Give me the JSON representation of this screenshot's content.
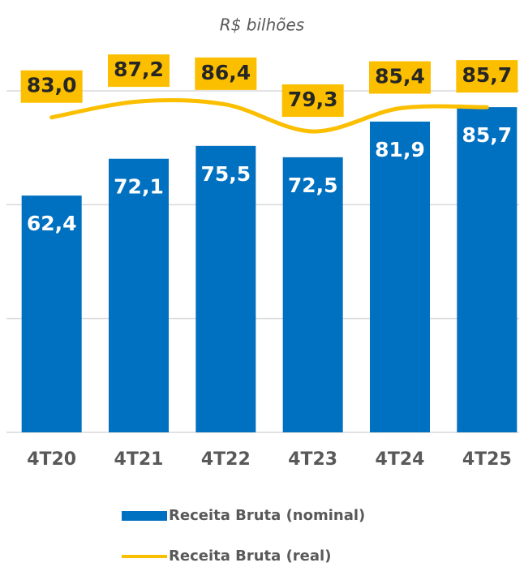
{
  "chart_data": {
    "type": "bar",
    "subtitle": "R$ bilhões",
    "categories": [
      "4T20",
      "4T21",
      "4T22",
      "4T23",
      "4T24",
      "4T25"
    ],
    "series": [
      {
        "name": "Receita Bruta (nominal)",
        "type": "bar",
        "color": "#0070c0",
        "values": [
          62.4,
          72.1,
          75.5,
          72.5,
          81.9,
          85.7
        ],
        "value_labels": [
          "62,4",
          "72,1",
          "75,5",
          "72,5",
          "81,9",
          "85,7"
        ]
      },
      {
        "name": "Receita Bruta (real)",
        "type": "line",
        "color": "#fbbf00",
        "values": [
          83.0,
          87.2,
          86.4,
          79.3,
          85.4,
          85.7
        ],
        "value_labels": [
          "83,0",
          "87,2",
          "86,4",
          "79,3",
          "85,4",
          "85,7"
        ]
      }
    ],
    "ylim": [
      0,
      90
    ],
    "yticks": [
      0,
      30,
      60,
      90
    ],
    "grid": true
  }
}
